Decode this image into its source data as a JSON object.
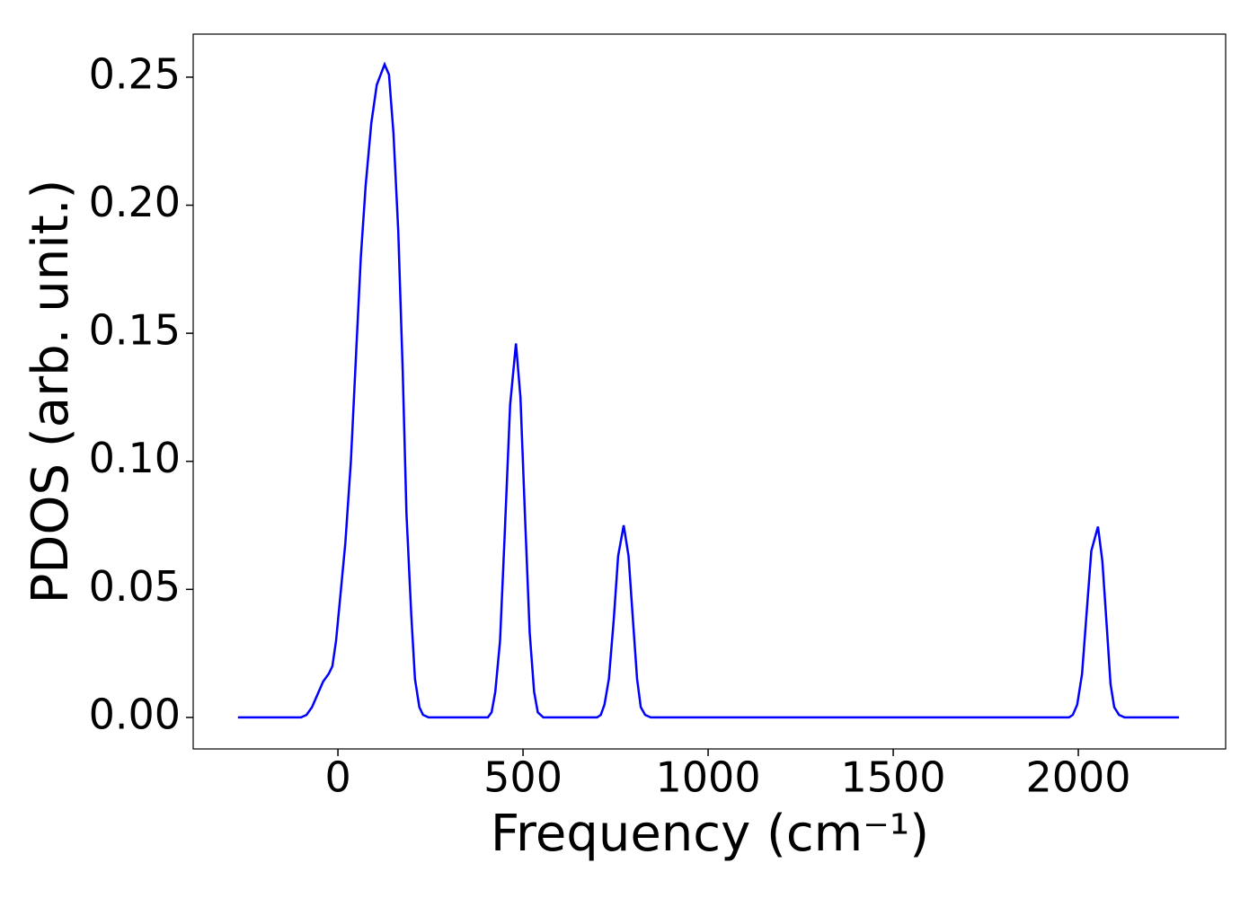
{
  "chart_data": {
    "type": "line",
    "xlabel": "Frequency (cm⁻¹)",
    "ylabel": "PDOS (arb. unit.)",
    "xlim": [
      -391,
      2398
    ],
    "ylim": [
      -0.0123,
      0.2668
    ],
    "xticks": [
      0,
      500,
      1000,
      1500,
      2000
    ],
    "yticks": [
      {
        "value": 0,
        "label": "0.00"
      },
      {
        "value": 0.05,
        "label": "0.05"
      },
      {
        "value": 0.1,
        "label": "0.10"
      },
      {
        "value": 0.15,
        "label": "0.15"
      },
      {
        "value": 0.2,
        "label": "0.20"
      },
      {
        "value": 0.25,
        "label": "0.25"
      }
    ],
    "x": [
      -270,
      -100,
      -85,
      -70,
      -55,
      -40,
      -25,
      -15,
      -5,
      5,
      20,
      35,
      50,
      62,
      75,
      90,
      105,
      126,
      138,
      150,
      163,
      175,
      185,
      198,
      208,
      220,
      230,
      245,
      405,
      415,
      425,
      438,
      450,
      465,
      481,
      493,
      505,
      518,
      530,
      540,
      555,
      700,
      710,
      720,
      732,
      745,
      757,
      772,
      785,
      797,
      808,
      818,
      830,
      845,
      1975,
      1985,
      1997,
      2010,
      2022,
      2035,
      2053,
      2065,
      2077,
      2087,
      2097,
      2110,
      2125,
      2272
    ],
    "series": [
      {
        "color": "#0000ff",
        "values": [
          0,
          0,
          0.001,
          0.004,
          0.009,
          0.014,
          0.017,
          0.02,
          0.03,
          0.045,
          0.068,
          0.1,
          0.145,
          0.18,
          0.208,
          0.232,
          0.247,
          0.255,
          0.251,
          0.228,
          0.19,
          0.135,
          0.08,
          0.04,
          0.015,
          0.004,
          0.001,
          0,
          0,
          0.002,
          0.01,
          0.03,
          0.07,
          0.122,
          0.146,
          0.125,
          0.08,
          0.033,
          0.01,
          0.002,
          0,
          0,
          0.001,
          0.005,
          0.015,
          0.038,
          0.063,
          0.075,
          0.063,
          0.038,
          0.015,
          0.004,
          0.001,
          0,
          0,
          0.001,
          0.005,
          0.017,
          0.04,
          0.065,
          0.0745,
          0.061,
          0.035,
          0.013,
          0.004,
          0.001,
          0,
          0
        ]
      }
    ]
  }
}
